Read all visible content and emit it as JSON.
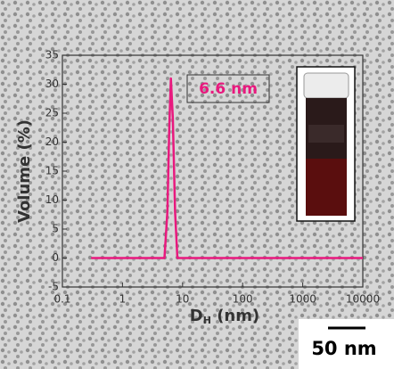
{
  "chart_data": {
    "type": "line",
    "x": [
      0.3,
      5,
      5.6,
      6.0,
      6.4,
      6.9,
      7.5,
      8.2,
      10000
    ],
    "values": [
      0,
      0,
      8,
      22,
      31,
      24,
      8,
      0,
      0
    ],
    "color": "#e8197e",
    "xlim": [
      0.1,
      10000
    ],
    "xticks": [
      0.1,
      1,
      10,
      100,
      1000,
      10000
    ],
    "xscale": "log",
    "ylim": [
      -5,
      35
    ],
    "yticks": [
      -5,
      0,
      5,
      10,
      15,
      20,
      25,
      30,
      35
    ],
    "y_label": "Volume (%)",
    "x_label": [
      "D",
      "H",
      " (nm)"
    ],
    "annotation": "6.6 nm",
    "scale_bar": "50 nm"
  }
}
